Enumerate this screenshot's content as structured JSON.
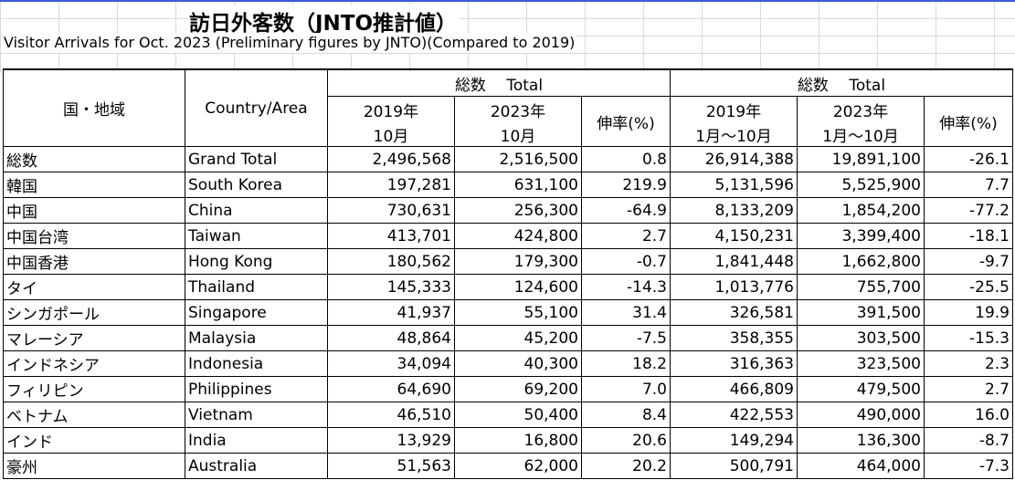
{
  "title": "訪日外客数（JNTO推計値）",
  "subtitle": "Visitor Arrivals for Oct. 2023 (Preliminary figures by JNTO)(Compared to 2019)",
  "header": {
    "country_jp": "国・地域",
    "country_en": "Country/Area",
    "total_left": "総数　 Total",
    "total_right": "総数　 Total",
    "y2019": "2019年",
    "y2023": "2023年",
    "oct": "10月",
    "jan_oct": "1月～10月",
    "growth": "伸率(%)"
  },
  "rows": [
    {
      "jp": "総数",
      "en": "Grand Total",
      "v2019": "2,496,568",
      "v2023": "2,516,500",
      "g": "0.8",
      "c2019": "26,914,388",
      "c2023": "19,891,100",
      "cg": "-26.1"
    },
    {
      "jp": "韓国",
      "en": "South Korea",
      "v2019": "197,281",
      "v2023": "631,100",
      "g": "219.9",
      "c2019": "5,131,596",
      "c2023": "5,525,900",
      "cg": "7.7"
    },
    {
      "jp": "中国",
      "en": "China",
      "v2019": "730,631",
      "v2023": "256,300",
      "g": "-64.9",
      "c2019": "8,133,209",
      "c2023": "1,854,200",
      "cg": "-77.2"
    },
    {
      "jp": "中国台湾",
      "en": "Taiwan",
      "v2019": "413,701",
      "v2023": "424,800",
      "g": "2.7",
      "c2019": "4,150,231",
      "c2023": "3,399,400",
      "cg": "-18.1"
    },
    {
      "jp": "中国香港",
      "en": "Hong Kong",
      "v2019": "180,562",
      "v2023": "179,300",
      "g": "-0.7",
      "c2019": "1,841,448",
      "c2023": "1,662,800",
      "cg": "-9.7"
    },
    {
      "jp": "タイ",
      "en": "Thailand",
      "v2019": "145,333",
      "v2023": "124,600",
      "g": "-14.3",
      "c2019": "1,013,776",
      "c2023": "755,700",
      "cg": "-25.5"
    },
    {
      "jp": "シンガポール",
      "en": "Singapore",
      "v2019": "41,937",
      "v2023": "55,100",
      "g": "31.4",
      "c2019": "326,581",
      "c2023": "391,500",
      "cg": "19.9"
    },
    {
      "jp": "マレーシア",
      "en": "Malaysia",
      "v2019": "48,864",
      "v2023": "45,200",
      "g": "-7.5",
      "c2019": "358,355",
      "c2023": "303,500",
      "cg": "-15.3"
    },
    {
      "jp": "インドネシア",
      "en": "Indonesia",
      "v2019": "34,094",
      "v2023": "40,300",
      "g": "18.2",
      "c2019": "316,363",
      "c2023": "323,500",
      "cg": "2.3"
    },
    {
      "jp": "フィリピン",
      "en": "Philippines",
      "v2019": "64,690",
      "v2023": "69,200",
      "g": "7.0",
      "c2019": "466,809",
      "c2023": "479,500",
      "cg": "2.7"
    },
    {
      "jp": "ベトナム",
      "en": "Vietnam",
      "v2019": "46,510",
      "v2023": "50,400",
      "g": "8.4",
      "c2019": "422,553",
      "c2023": "490,000",
      "cg": "16.0"
    },
    {
      "jp": "インド",
      "en": "India",
      "v2019": "13,929",
      "v2023": "16,800",
      "g": "20.6",
      "c2019": "149,294",
      "c2023": "136,300",
      "cg": "-8.7"
    },
    {
      "jp": "豪州",
      "en": "Australia",
      "v2019": "51,563",
      "v2023": "62,000",
      "g": "20.2",
      "c2019": "500,791",
      "c2023": "464,000",
      "cg": "-7.3"
    }
  ]
}
